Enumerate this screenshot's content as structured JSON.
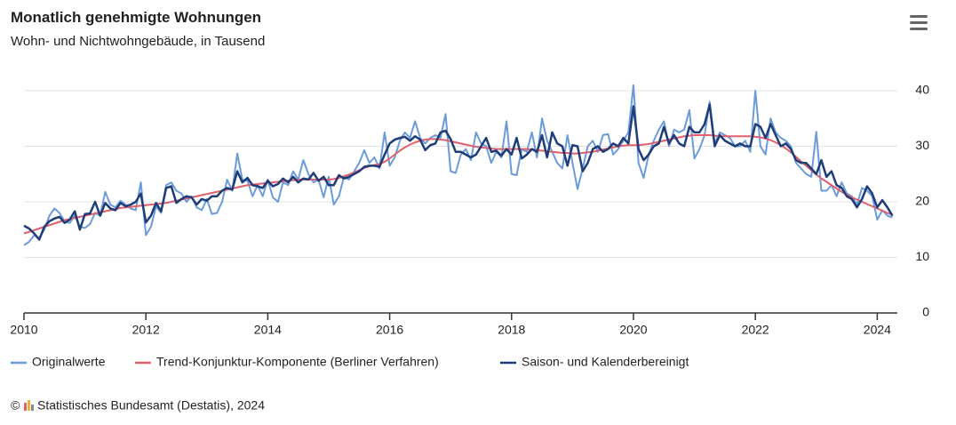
{
  "chart_data": {
    "type": "line",
    "title": "Monatlich genehmigte Wohnungen",
    "subtitle": "Wohn- und Nichtwohngebäude, in Tausend",
    "copyright": "©",
    "source": "Statistisches Bundesamt (Destatis), 2024",
    "xlim": [
      2010,
      2024.33
    ],
    "xticks": [
      2010,
      2012,
      2014,
      2016,
      2018,
      2020,
      2022,
      2024
    ],
    "ylim": [
      0,
      42
    ],
    "yticks": [
      0,
      10,
      20,
      30,
      40
    ],
    "grid": true,
    "legend": "bottom",
    "x": [
      2010,
      2010.083,
      2010.167,
      2010.25,
      2010.333,
      2010.417,
      2010.5,
      2010.583,
      2010.667,
      2010.75,
      2010.833,
      2010.917,
      2011,
      2011.083,
      2011.167,
      2011.25,
      2011.333,
      2011.417,
      2011.5,
      2011.583,
      2011.667,
      2011.75,
      2011.833,
      2011.917,
      2012,
      2012.083,
      2012.167,
      2012.25,
      2012.333,
      2012.417,
      2012.5,
      2012.583,
      2012.667,
      2012.75,
      2012.833,
      2012.917,
      2013,
      2013.083,
      2013.167,
      2013.25,
      2013.333,
      2013.417,
      2013.5,
      2013.583,
      2013.667,
      2013.75,
      2013.833,
      2013.917,
      2014,
      2014.083,
      2014.167,
      2014.25,
      2014.333,
      2014.417,
      2014.5,
      2014.583,
      2014.667,
      2014.75,
      2014.833,
      2014.917,
      2015,
      2015.083,
      2015.167,
      2015.25,
      2015.333,
      2015.417,
      2015.5,
      2015.583,
      2015.667,
      2015.75,
      2015.833,
      2015.917,
      2016,
      2016.083,
      2016.167,
      2016.25,
      2016.333,
      2016.417,
      2016.5,
      2016.583,
      2016.667,
      2016.75,
      2016.833,
      2016.917,
      2017,
      2017.083,
      2017.167,
      2017.25,
      2017.333,
      2017.417,
      2017.5,
      2017.583,
      2017.667,
      2017.75,
      2017.833,
      2017.917,
      2018,
      2018.083,
      2018.167,
      2018.25,
      2018.333,
      2018.417,
      2018.5,
      2018.583,
      2018.667,
      2018.75,
      2018.833,
      2018.917,
      2019,
      2019.083,
      2019.167,
      2019.25,
      2019.333,
      2019.417,
      2019.5,
      2019.583,
      2019.667,
      2019.75,
      2019.833,
      2019.917,
      2020,
      2020.083,
      2020.167,
      2020.25,
      2020.333,
      2020.417,
      2020.5,
      2020.583,
      2020.667,
      2020.75,
      2020.833,
      2020.917,
      2021,
      2021.083,
      2021.167,
      2021.25,
      2021.333,
      2021.417,
      2021.5,
      2021.583,
      2021.667,
      2021.75,
      2021.833,
      2021.917,
      2022,
      2022.083,
      2022.167,
      2022.25,
      2022.333,
      2022.417,
      2022.5,
      2022.583,
      2022.667,
      2022.75,
      2022.833,
      2022.917,
      2023,
      2023.083,
      2023.167,
      2023.25,
      2023.333,
      2023.417,
      2023.5,
      2023.583,
      2023.667,
      2023.75,
      2023.833,
      2023.917,
      2024,
      2024.083,
      2024.167,
      2024.25
    ],
    "series": [
      {
        "name": "Originalwerte",
        "color": "#6b9bd9",
        "width": 2,
        "values": [
          12.2,
          12.8,
          14.0,
          13.5,
          15.0,
          17.5,
          18.8,
          18.0,
          16.5,
          16.2,
          17.5,
          15.5,
          15.3,
          16.0,
          18.0,
          17.5,
          21.8,
          19.5,
          19.0,
          20.2,
          19.5,
          18.8,
          18.5,
          23.5,
          14.0,
          15.5,
          19.2,
          18.0,
          23.0,
          23.5,
          22.0,
          21.5,
          20.0,
          21.0,
          19.0,
          18.5,
          20.5,
          17.8,
          18.0,
          20.0,
          24.0,
          22.0,
          28.7,
          24.0,
          23.8,
          21.0,
          23.0,
          21.0,
          24.0,
          20.8,
          20.0,
          23.5,
          23.0,
          25.5,
          24.0,
          27.5,
          25.0,
          23.5,
          24.0,
          20.8,
          24.5,
          19.5,
          21.0,
          24.5,
          24.0,
          25.5,
          27.0,
          29.3,
          27.0,
          28.0,
          26.0,
          32.5,
          26.5,
          28.0,
          31.0,
          32.5,
          31.5,
          34.5,
          31.5,
          30.5,
          31.5,
          32.0,
          31.5,
          35.8,
          25.5,
          25.2,
          28.5,
          29.5,
          27.5,
          32.5,
          30.5,
          30.0,
          27.0,
          29.0,
          28.0,
          34.5,
          25.0,
          24.8,
          29.5,
          29.0,
          32.5,
          28.0,
          35.0,
          31.0,
          29.0,
          27.0,
          26.0,
          32.0,
          27.0,
          22.3,
          26.0,
          30.0,
          31.0,
          29.0,
          32.0,
          32.2,
          28.5,
          29.5,
          31.0,
          32.5,
          41.0,
          27.0,
          24.3,
          28.5,
          31.0,
          33.0,
          34.5,
          30.0,
          33.0,
          32.5,
          33.0,
          36.5,
          27.8,
          29.5,
          32.0,
          38.0,
          30.5,
          32.5,
          32.0,
          31.5,
          30.0,
          30.0,
          31.0,
          29.0,
          40.0,
          30.0,
          28.5,
          35.0,
          32.5,
          31.5,
          31.0,
          30.0,
          27.0,
          26.0,
          25.0,
          24.5,
          32.6,
          22.0,
          22.0,
          23.0,
          21.0,
          23.5,
          21.5,
          21.0,
          19.5,
          22.5,
          22.0,
          21.0,
          16.8,
          18.5,
          17.5,
          17.2
        ]
      },
      {
        "name": "Trend-Konjunktur-Komponente (Berliner Verfahren)",
        "color": "#e0606e",
        "width": 2,
        "values": [
          14.3,
          14.6,
          14.9,
          15.2,
          15.5,
          15.8,
          16.1,
          16.4,
          16.7,
          16.9,
          17.1,
          17.3,
          17.5,
          17.7,
          17.9,
          18.1,
          18.3,
          18.5,
          18.7,
          18.9,
          19.0,
          19.1,
          19.2,
          19.3,
          19.4,
          19.5,
          19.6,
          19.7,
          19.8,
          20.0,
          20.2,
          20.4,
          20.6,
          20.8,
          21.0,
          21.2,
          21.4,
          21.6,
          21.8,
          22.0,
          22.2,
          22.4,
          22.6,
          22.8,
          23.0,
          23.1,
          23.2,
          23.3,
          23.4,
          23.5,
          23.6,
          23.7,
          23.8,
          23.9,
          24.0,
          24.0,
          24.0,
          24.0,
          24.0,
          24.0,
          24.0,
          24.1,
          24.3,
          24.6,
          24.9,
          25.3,
          25.7,
          26.1,
          26.4,
          26.6,
          26.8,
          27.2,
          27.8,
          28.5,
          29.2,
          29.8,
          30.3,
          30.7,
          31.0,
          31.2,
          31.3,
          31.3,
          31.2,
          31.1,
          30.9,
          30.7,
          30.5,
          30.3,
          30.1,
          29.9,
          29.8,
          29.7,
          29.6,
          29.5,
          29.5,
          29.5,
          29.5,
          29.5,
          29.5,
          29.5,
          29.4,
          29.3,
          29.2,
          29.1,
          29.0,
          28.9,
          28.8,
          28.8,
          28.7,
          28.7,
          28.8,
          28.9,
          29.0,
          29.2,
          29.4,
          29.6,
          29.8,
          30.0,
          30.1,
          30.2,
          30.2,
          30.2,
          30.3,
          30.4,
          30.6,
          30.8,
          31.0,
          31.2,
          31.4,
          31.6,
          31.8,
          31.9,
          32.0,
          32.0,
          32.0,
          32.0,
          31.9,
          31.8,
          31.8,
          31.8,
          31.8,
          31.8,
          31.8,
          31.8,
          31.7,
          31.6,
          31.4,
          31.1,
          30.7,
          30.2,
          29.6,
          28.9,
          28.1,
          27.3,
          26.5,
          25.7,
          24.9,
          24.2,
          23.6,
          23.0,
          22.4,
          21.8,
          21.3,
          20.8,
          20.4,
          20.0,
          19.6,
          19.2,
          18.8,
          18.4,
          18.0,
          17.7
        ]
      },
      {
        "name": "Saison- und Kalenderbereinigt",
        "color": "#1f3d78",
        "width": 2.5,
        "values": [
          15.7,
          15.2,
          14.3,
          13.2,
          15.5,
          16.5,
          17.0,
          17.3,
          16.2,
          16.8,
          18.3,
          15.0,
          17.8,
          17.9,
          20.0,
          17.5,
          19.8,
          18.8,
          18.5,
          19.8,
          19.2,
          19.5,
          20.0,
          21.5,
          16.3,
          17.5,
          19.8,
          18.3,
          22.5,
          22.8,
          19.8,
          20.5,
          21.0,
          20.8,
          19.5,
          20.5,
          20.2,
          21.0,
          21.0,
          22.0,
          22.5,
          22.2,
          25.5,
          23.5,
          24.3,
          23.0,
          22.8,
          22.5,
          23.8,
          22.8,
          23.2,
          24.2,
          23.5,
          24.5,
          23.5,
          24.2,
          24.0,
          25.2,
          23.8,
          24.5,
          23.0,
          23.0,
          24.8,
          24.2,
          24.5,
          25.0,
          25.5,
          26.3,
          26.5,
          26.5,
          26.3,
          28.5,
          30.5,
          31.2,
          31.5,
          31.7,
          31.0,
          31.8,
          31.2,
          29.3,
          30.2,
          30.5,
          32.5,
          32.8,
          31.3,
          29.0,
          29.0,
          28.5,
          28.0,
          28.5,
          30.0,
          31.5,
          29.0,
          29.2,
          28.3,
          29.5,
          28.5,
          31.5,
          27.8,
          28.5,
          29.5,
          29.0,
          32.0,
          28.0,
          32.5,
          30.5,
          30.0,
          26.5,
          30.2,
          30.0,
          25.5,
          27.0,
          29.5,
          30.0,
          29.0,
          29.5,
          30.5,
          30.0,
          31.5,
          30.5,
          37.2,
          29.5,
          27.5,
          28.5,
          30.0,
          30.5,
          33.5,
          30.5,
          32.0,
          30.5,
          30.0,
          33.5,
          32.5,
          32.5,
          34.0,
          37.5,
          30.0,
          32.0,
          31.0,
          30.5,
          30.0,
          30.5,
          30.0,
          30.0,
          34.0,
          33.5,
          31.5,
          34.0,
          32.0,
          30.0,
          30.5,
          29.5,
          27.5,
          27.0,
          27.0,
          26.0,
          25.0,
          27.5,
          24.5,
          25.5,
          23.0,
          22.5,
          21.0,
          20.5,
          19.0,
          20.5,
          22.8,
          21.5,
          19.0,
          20.3,
          19.0,
          17.5
        ]
      }
    ]
  }
}
